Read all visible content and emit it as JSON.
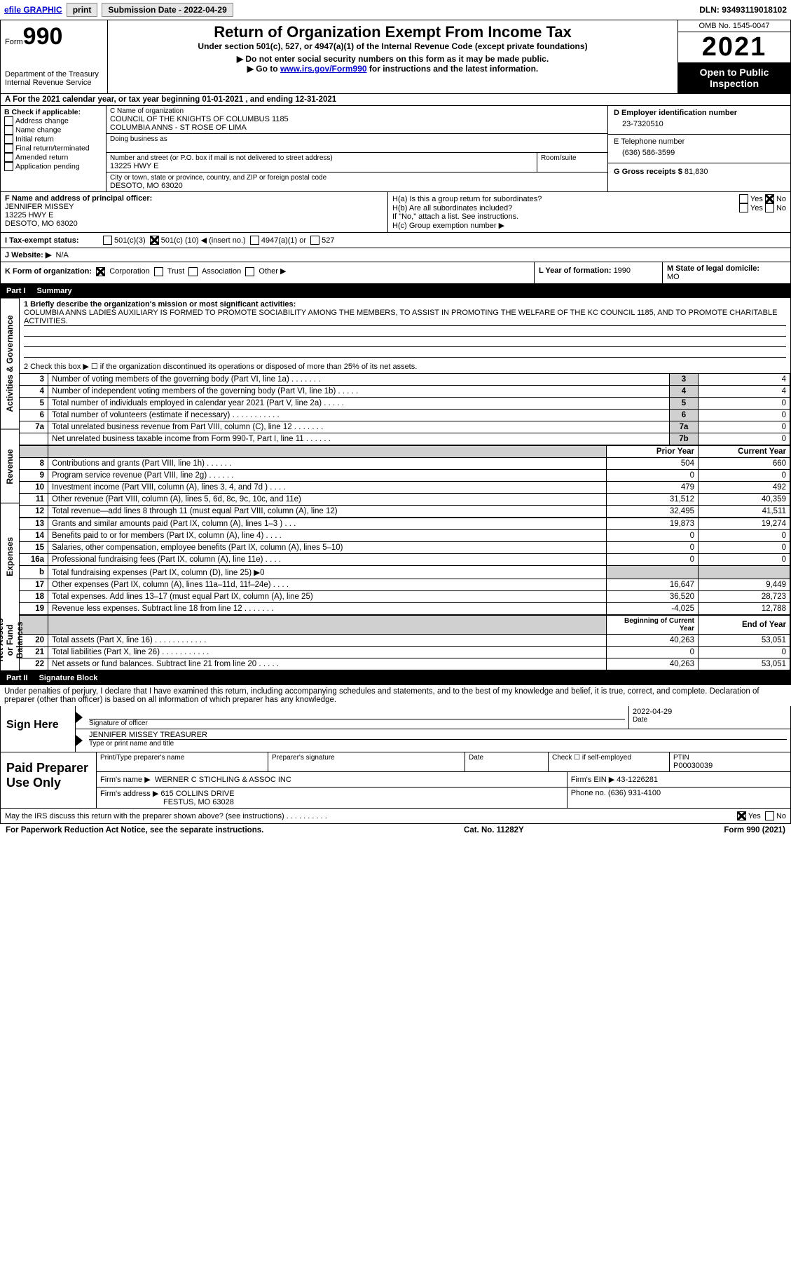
{
  "top_bar": {
    "efile_label": "efile GRAPHIC",
    "print_btn": "print",
    "submission_label": "Submission Date - 2022-04-29",
    "dln_label": "DLN: 93493119018102"
  },
  "header": {
    "form_word": "Form",
    "form_number": "990",
    "dept": "Department of the Treasury",
    "irs": "Internal Revenue Service",
    "title": "Return of Organization Exempt From Income Tax",
    "subtitle": "Under section 501(c), 527, or 4947(a)(1) of the Internal Revenue Code (except private foundations)",
    "note1": "▶ Do not enter social security numbers on this form as it may be made public.",
    "note2_pre": "▶ Go to ",
    "note2_link": "www.irs.gov/Form990",
    "note2_post": " for instructions and the latest information.",
    "omb": "OMB No. 1545-0047",
    "year": "2021",
    "open_public": "Open to Public Inspection"
  },
  "period": {
    "line": "A For the 2021 calendar year, or tax year beginning 01-01-2021     , and ending 12-31-2021"
  },
  "box_b": {
    "label": "B Check if applicable:",
    "items": [
      "Address change",
      "Name change",
      "Initial return",
      "Final return/terminated",
      "Amended return",
      "Application pending"
    ]
  },
  "box_c": {
    "name_label": "C Name of organization",
    "name1": "COUNCIL OF THE KNIGHTS OF COLUMBUS 1185",
    "name2": "COLUMBIA ANNS - ST ROSE OF LIMA",
    "dba_label": "Doing business as",
    "street_label": "Number and street (or P.O. box if mail is not delivered to street address)",
    "room_label": "Room/suite",
    "street": "13225 HWY E",
    "city_label": "City or town, state or province, country, and ZIP or foreign postal code",
    "city": "DESOTO, MO  63020"
  },
  "box_d": {
    "label": "D Employer identification number",
    "value": "23-7320510"
  },
  "box_e": {
    "label": "E Telephone number",
    "value": "(636) 586-3599"
  },
  "box_g": {
    "label": "G Gross receipts $ ",
    "value": "81,830"
  },
  "box_f": {
    "label": "F Name and address of principal officer:",
    "name": "JENNIFER MISSEY",
    "addr1": "13225 HWY E",
    "addr2": "DESOTO, MO  63020"
  },
  "box_h": {
    "ha": "H(a)  Is this a group return for subordinates?",
    "hb": "H(b)  Are all subordinates included?",
    "hb_note": "If \"No,\" attach a list. See instructions.",
    "hc": "H(c)  Group exemption number ▶",
    "yes": "Yes",
    "no": "No"
  },
  "tax_status": {
    "label": "I  Tax-exempt status:",
    "opt1": "501(c)(3)",
    "opt2_pre": "501(c) (",
    "opt2_num": "10",
    "opt2_post": ") ◀ (insert no.)",
    "opt3": "4947(a)(1) or",
    "opt4": "527"
  },
  "website": {
    "label": "J  Website: ▶",
    "value": "N/A"
  },
  "box_k": {
    "label": "K Form of organization:",
    "opts": [
      "Corporation",
      "Trust",
      "Association",
      "Other ▶"
    ]
  },
  "box_l": {
    "label": "L Year of formation: ",
    "value": "1990"
  },
  "box_m": {
    "label": "M State of legal domicile:",
    "value": "MO"
  },
  "part1": {
    "label": "Part I",
    "title": "Summary"
  },
  "summary": {
    "q1_label": "1  Briefly describe the organization's mission or most significant activities:",
    "q1_text": "COLUMBIA ANNS LADIES AUXILIARY IS FORMED TO PROMOTE SOCIABILITY AMONG THE MEMBERS, TO ASSIST IN PROMOTING THE WELFARE OF THE KC COUNCIL 1185, AND TO PROMOTE CHARITABLE ACTIVITIES.",
    "q2": "2   Check this box ▶ ☐ if the organization discontinued its operations or disposed of more than 25% of its net assets.",
    "rows_ag": [
      {
        "n": "3",
        "t": "Number of voting members of the governing body (Part VI, line 1a)   .    .    .    .    .    .    .",
        "b": "3",
        "v": "4"
      },
      {
        "n": "4",
        "t": "Number of independent voting members of the governing body (Part VI, line 1b)   .    .    .    .    .",
        "b": "4",
        "v": "4"
      },
      {
        "n": "5",
        "t": "Total number of individuals employed in calendar year 2021 (Part V, line 2a)   .    .    .    .    .",
        "b": "5",
        "v": "0"
      },
      {
        "n": "6",
        "t": "Total number of volunteers (estimate if necessary)    .    .    .    .    .    .    .    .    .    .    .",
        "b": "6",
        "v": "0"
      },
      {
        "n": "7a",
        "t": "Total unrelated business revenue from Part VIII, column (C), line 12    .    .    .    .    .    .    .",
        "b": "7a",
        "v": "0"
      },
      {
        "n": "",
        "t": "Net unrelated business taxable income from Form 990-T, Part I, line 11   .    .    .    .    .    .",
        "b": "7b",
        "v": "0"
      }
    ],
    "col_prior": "Prior Year",
    "col_current": "Current Year",
    "rows_rev": [
      {
        "n": "8",
        "t": "Contributions and grants (Part VIII, line 1h)    .    .    .    .    .    .",
        "p": "504",
        "c": "660"
      },
      {
        "n": "9",
        "t": "Program service revenue (Part VIII, line 2g)    .    .    .    .    .    .",
        "p": "0",
        "c": "0"
      },
      {
        "n": "10",
        "t": "Investment income (Part VIII, column (A), lines 3, 4, and 7d )    .    .    .    .",
        "p": "479",
        "c": "492"
      },
      {
        "n": "11",
        "t": "Other revenue (Part VIII, column (A), lines 5, 6d, 8c, 9c, 10c, and 11e)",
        "p": "31,512",
        "c": "40,359"
      },
      {
        "n": "12",
        "t": "Total revenue—add lines 8 through 11 (must equal Part VIII, column (A), line 12)",
        "p": "32,495",
        "c": "41,511"
      }
    ],
    "rows_exp": [
      {
        "n": "13",
        "t": "Grants and similar amounts paid (Part IX, column (A), lines 1–3 )    .    .    .",
        "p": "19,873",
        "c": "19,274"
      },
      {
        "n": "14",
        "t": "Benefits paid to or for members (Part IX, column (A), line 4)   .    .    .    .",
        "p": "0",
        "c": "0"
      },
      {
        "n": "15",
        "t": "Salaries, other compensation, employee benefits (Part IX, column (A), lines 5–10)",
        "p": "0",
        "c": "0"
      },
      {
        "n": "16a",
        "t": "Professional fundraising fees (Part IX, column (A), line 11e)    .    .    .    .",
        "p": "0",
        "c": "0"
      },
      {
        "n": "b",
        "t": "Total fundraising expenses (Part IX, column (D), line 25) ▶0",
        "p": "",
        "c": "",
        "shade": true
      },
      {
        "n": "17",
        "t": "Other expenses (Part IX, column (A), lines 11a–11d, 11f–24e)    .    .    .    .",
        "p": "16,647",
        "c": "9,449"
      },
      {
        "n": "18",
        "t": "Total expenses. Add lines 13–17 (must equal Part IX, column (A), line 25)",
        "p": "36,520",
        "c": "28,723"
      },
      {
        "n": "19",
        "t": "Revenue less expenses. Subtract line 18 from line 12  .    .    .    .    .    .    .",
        "p": "-4,025",
        "c": "12,788"
      }
    ],
    "col_begin": "Beginning of Current Year",
    "col_end": "End of Year",
    "rows_na": [
      {
        "n": "20",
        "t": "Total assets (Part X, line 16)   .    .    .    .    .    .    .    .    .    .    .    .",
        "p": "40,263",
        "c": "53,051"
      },
      {
        "n": "21",
        "t": "Total liabilities (Part X, line 26)   .    .    .    .    .    .    .    .    .    .    .",
        "p": "0",
        "c": "0"
      },
      {
        "n": "22",
        "t": "Net assets or fund balances. Subtract line 21 from line 20   .    .    .    .    .",
        "p": "40,263",
        "c": "53,051"
      }
    ],
    "sec_ag": "Activities & Governance",
    "sec_rev": "Revenue",
    "sec_exp": "Expenses",
    "sec_na": "Net Assets or Fund Balances"
  },
  "part2": {
    "label": "Part II",
    "title": "Signature Block"
  },
  "sig": {
    "penalties": "Under penalties of perjury, I declare that I have examined this return, including accompanying schedules and statements, and to the best of my knowledge and belief, it is true, correct, and complete. Declaration of preparer (other than officer) is based on all information of which preparer has any knowledge.",
    "sign_here": "Sign Here",
    "sig_officer": "Signature of officer",
    "sig_date": "2022-04-29",
    "date_label": "Date",
    "name_title": "JENNIFER MISSEY TREASURER",
    "type_label": "Type or print name and title",
    "paid": "Paid Preparer Use Only",
    "print_label": "Print/Type preparer's name",
    "prep_sig_label": "Preparer's signature",
    "check_self": "Check ☐ if self-employed",
    "ptin_label": "PTIN",
    "ptin": "P00030039",
    "firm_name_label": "Firm's name    ▶",
    "firm_name": "WERNER C STICHLING & ASSOC INC",
    "firm_ein_label": "Firm's EIN ▶",
    "firm_ein": "43-1226281",
    "firm_addr_label": "Firm's address ▶",
    "firm_addr1": "615 COLLINS DRIVE",
    "firm_addr2": "FESTUS, MO  63028",
    "phone_label": "Phone no. ",
    "phone": "(636) 931-4100",
    "discuss": "May the IRS discuss this return with the preparer shown above? (see instructions)   .    .    .    .    .    .    .    .    .    .",
    "yes": "Yes",
    "no": "No"
  },
  "footer": {
    "left": "For Paperwork Reduction Act Notice, see the separate instructions.",
    "mid": "Cat. No. 11282Y",
    "right": "Form 990 (2021)"
  }
}
